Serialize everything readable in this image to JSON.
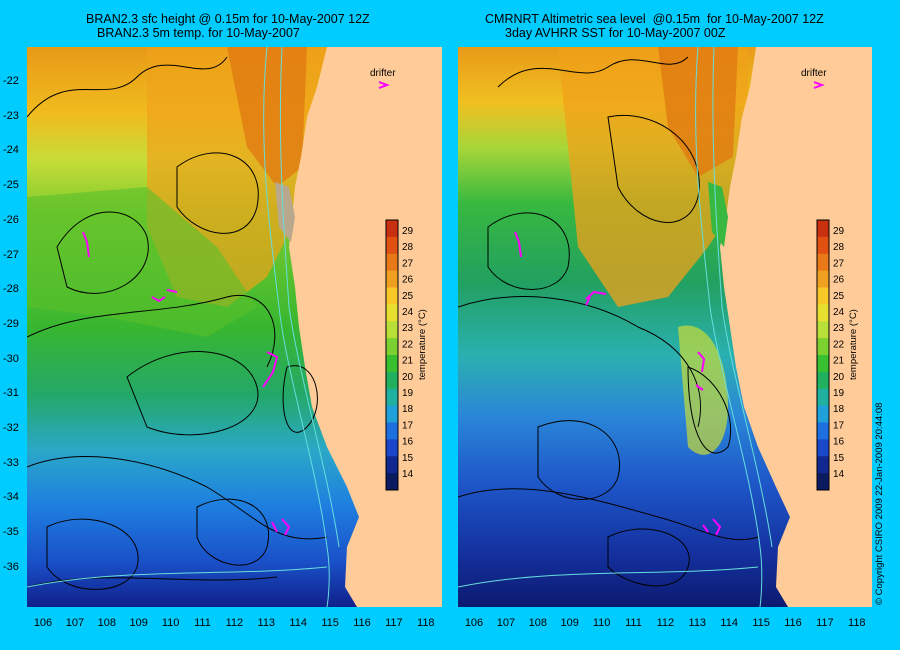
{
  "left_panel": {
    "title_line1": "BRAN2.3 sfc height @ 0.15m for 10-May-2007 12Z",
    "title_line2": "BRAN2.3 5m temp. for 10-May-2007",
    "drifter_label": "drifter",
    "colorbar_title": "temperature (°C)"
  },
  "right_panel": {
    "title_line1": "CMRNRT Altimetric sea level  @0.15m  for 10-May-2007 12Z",
    "title_line2": "3day AVHRR SST for 10-May-2007 00Z",
    "drifter_label": "drifter",
    "colorbar_title": "temperature (°C)"
  },
  "latitude_labels": [
    "-22",
    "-23",
    "-24",
    "-25",
    "-26",
    "-27",
    "-28",
    "-29",
    "-30",
    "-31",
    "-32",
    "-33",
    "-34",
    "-35",
    "-36"
  ],
  "longitude_labels": [
    "106",
    "107",
    "108",
    "109",
    "110",
    "111",
    "112",
    "113",
    "114",
    "115",
    "116",
    "117",
    "118"
  ],
  "colorbar_labels": [
    "29",
    "28",
    "27",
    "26",
    "25",
    "24",
    "23",
    "22",
    "21",
    "20",
    "19",
    "18",
    "17",
    "16",
    "15",
    "14"
  ],
  "copyright": "© Copyright CSIRO 2009   22-Jan-2009 20:44:08",
  "colors": {
    "background": "#00ccff",
    "land": "#ffcc99",
    "contour_height": "#000000",
    "contour_bathymetry": "#66dddd",
    "drifter": "#ff00ff"
  },
  "map_data": {
    "lat_range": [
      -36.5,
      -21.3
    ],
    "lon_range": [
      105.5,
      118.3
    ],
    "temperature_range": [
      14,
      30
    ]
  }
}
